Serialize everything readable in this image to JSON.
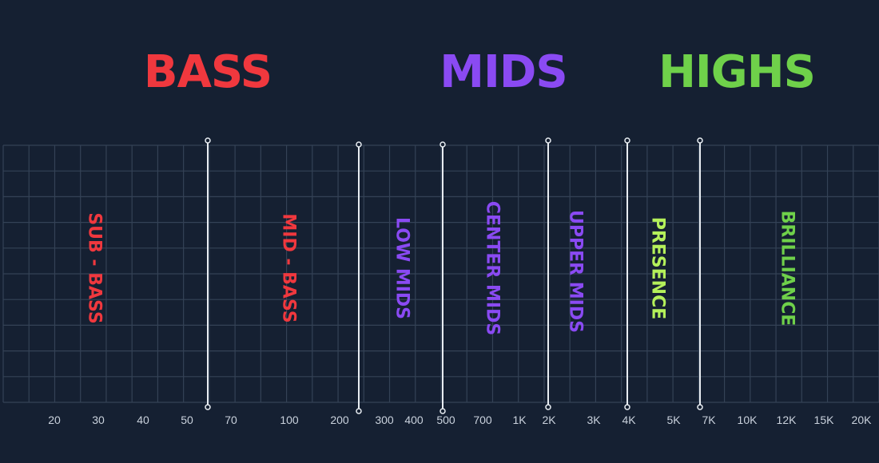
{
  "bands": [
    {
      "title": "BASS",
      "color": "#f0383e"
    },
    {
      "title": "MIDS",
      "color": "#8a4af3"
    },
    {
      "title": "HIGHS",
      "color": "#6fd14a"
    }
  ],
  "sub_bands": [
    {
      "label": "SUB - BASS",
      "color": "#f0383e"
    },
    {
      "label": "MID - BASS",
      "color": "#f0383e"
    },
    {
      "label": "LOW MIDS",
      "color": "#8a4af3"
    },
    {
      "label": "CENTER MIDS",
      "color": "#8a4af3"
    },
    {
      "label": "UPPER MIDS",
      "color": "#8a4af3"
    },
    {
      "label": "PRESENCE",
      "color": "#b4f05a"
    },
    {
      "label": "BRILLIANCE",
      "color": "#6fd14a"
    }
  ],
  "frequency_ticks": [
    "20",
    "30",
    "40",
    "50",
    "70",
    "100",
    "200",
    "300",
    "400",
    "500",
    "700",
    "1K",
    "2K",
    "3K",
    "4K",
    "5K",
    "7K",
    "10K",
    "12K",
    "15K",
    "20K"
  ],
  "colors": {
    "background": "#152032",
    "grid": "#344256",
    "divider": "#e8edf2"
  }
}
